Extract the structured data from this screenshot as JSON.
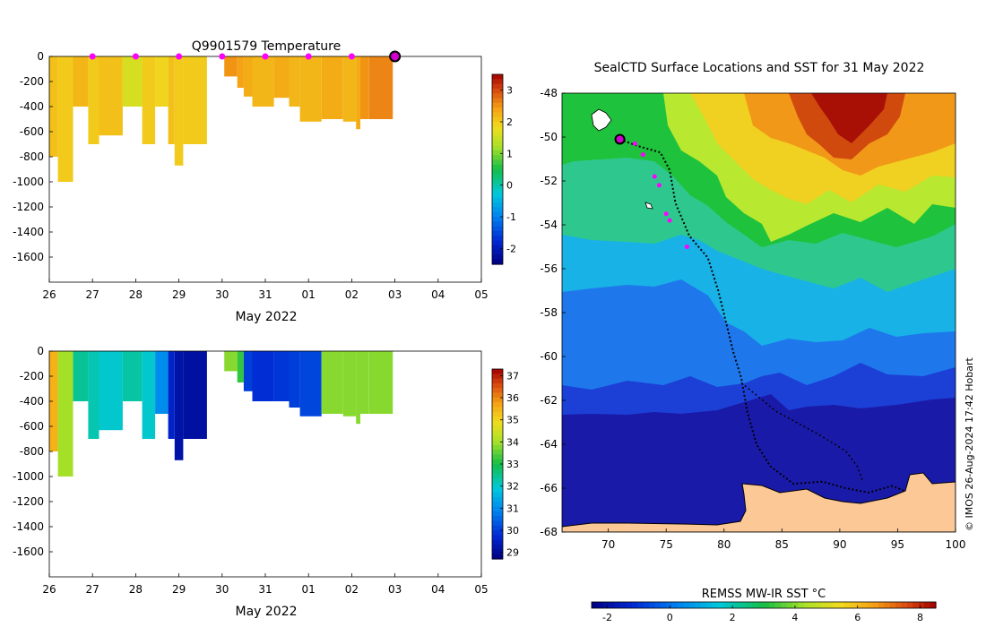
{
  "chart_data": [
    {
      "type": "heatmap",
      "title": "Q9901579  Temperature",
      "xlabel": "May 2022",
      "ylabel": "",
      "x_ticks": [
        "26",
        "27",
        "28",
        "29",
        "30",
        "31",
        "01",
        "02",
        "03",
        "04",
        "05"
      ],
      "y_ticks": [
        "0",
        "-200",
        "-400",
        "-600",
        "-800",
        "-1000",
        "-1200",
        "-1400",
        "-1600"
      ],
      "ylim": [
        -1800,
        0
      ],
      "xlim": [
        26,
        36
      ],
      "colorbar_ticks": [
        "3",
        "2",
        "1",
        "0",
        "-1",
        "-2"
      ],
      "colorbar_range": [
        -2.5,
        3.5
      ],
      "profiles": [
        {
          "x": 26.0,
          "w": 0.2,
          "depth": 800,
          "value": 2.1
        },
        {
          "x": 26.2,
          "w": 0.35,
          "depth": 1000,
          "value": 2.0
        },
        {
          "x": 26.55,
          "w": 0.35,
          "depth": 400,
          "value": 2.2
        },
        {
          "x": 26.9,
          "w": 0.25,
          "depth": 700,
          "value": 2.0
        },
        {
          "x": 27.15,
          "w": 0.55,
          "depth": 630,
          "value": 2.1
        },
        {
          "x": 27.7,
          "w": 0.45,
          "depth": 400,
          "value": 1.6
        },
        {
          "x": 28.15,
          "w": 0.3,
          "depth": 700,
          "value": 2.0
        },
        {
          "x": 28.45,
          "w": 0.3,
          "depth": 400,
          "value": 1.9
        },
        {
          "x": 28.75,
          "w": 0.15,
          "depth": 700,
          "value": 2.1
        },
        {
          "x": 28.9,
          "w": 0.2,
          "depth": 870,
          "value": 2.0
        },
        {
          "x": 29.1,
          "w": 0.55,
          "depth": 700,
          "value": 2.0
        },
        {
          "x": 30.05,
          "w": 0.3,
          "depth": 160,
          "value": 2.5
        },
        {
          "x": 30.35,
          "w": 0.15,
          "depth": 250,
          "value": 2.4
        },
        {
          "x": 30.5,
          "w": 0.2,
          "depth": 320,
          "value": 2.3
        },
        {
          "x": 30.7,
          "w": 0.5,
          "depth": 400,
          "value": 2.2
        },
        {
          "x": 31.2,
          "w": 0.35,
          "depth": 330,
          "value": 2.3
        },
        {
          "x": 31.55,
          "w": 0.25,
          "depth": 400,
          "value": 2.2
        },
        {
          "x": 31.8,
          "w": 0.5,
          "depth": 520,
          "value": 2.2
        },
        {
          "x": 32.3,
          "w": 0.5,
          "depth": 500,
          "value": 2.3
        },
        {
          "x": 32.8,
          "w": 0.3,
          "depth": 520,
          "value": 2.2
        },
        {
          "x": 33.1,
          "w": 0.1,
          "depth": 580,
          "value": 2.3
        },
        {
          "x": 33.2,
          "w": 0.2,
          "depth": 500,
          "value": 2.5
        },
        {
          "x": 33.4,
          "w": 0.55,
          "depth": 500,
          "value": 2.6
        }
      ],
      "markers": [
        27.0,
        28.0,
        29.0,
        30.0,
        31.0,
        32.0,
        33.0
      ],
      "current_marker": 34.0
    },
    {
      "type": "heatmap",
      "title": "",
      "xlabel": "May 2022",
      "x_ticks": [
        "26",
        "27",
        "28",
        "29",
        "30",
        "31",
        "01",
        "02",
        "03",
        "04",
        "05"
      ],
      "y_ticks": [
        "0",
        "-200",
        "-400",
        "-600",
        "-800",
        "-1000",
        "-1200",
        "-1400",
        "-1600"
      ],
      "ylim": [
        -1800,
        0
      ],
      "xlim": [
        26,
        36
      ],
      "colorbar_ticks": [
        "37",
        "36",
        "35",
        "34",
        "33",
        "32",
        "31",
        "30",
        "29"
      ],
      "colorbar_range": [
        28.7,
        37.3
      ],
      "profiles": [
        {
          "x": 26.0,
          "w": 0.2,
          "depth": 800,
          "value": 35.5
        },
        {
          "x": 26.2,
          "w": 0.35,
          "depth": 1000,
          "value": 34.0
        },
        {
          "x": 26.55,
          "w": 0.35,
          "depth": 400,
          "value": 32.4
        },
        {
          "x": 26.9,
          "w": 0.25,
          "depth": 700,
          "value": 32.2
        },
        {
          "x": 27.15,
          "w": 0.55,
          "depth": 630,
          "value": 32.0
        },
        {
          "x": 27.7,
          "w": 0.45,
          "depth": 400,
          "value": 32.3
        },
        {
          "x": 28.15,
          "w": 0.3,
          "depth": 700,
          "value": 32.0
        },
        {
          "x": 28.45,
          "w": 0.3,
          "depth": 500,
          "value": 31.0
        },
        {
          "x": 28.75,
          "w": 0.15,
          "depth": 700,
          "value": 29.6
        },
        {
          "x": 28.9,
          "w": 0.2,
          "depth": 870,
          "value": 29.2
        },
        {
          "x": 29.1,
          "w": 0.55,
          "depth": 700,
          "value": 29.1
        },
        {
          "x": 30.05,
          "w": 0.3,
          "depth": 160,
          "value": 33.8
        },
        {
          "x": 30.35,
          "w": 0.15,
          "depth": 250,
          "value": 33.2
        },
        {
          "x": 30.5,
          "w": 0.2,
          "depth": 320,
          "value": 30.0
        },
        {
          "x": 30.7,
          "w": 0.5,
          "depth": 400,
          "value": 29.8
        },
        {
          "x": 31.2,
          "w": 0.35,
          "depth": 400,
          "value": 29.9
        },
        {
          "x": 31.55,
          "w": 0.25,
          "depth": 450,
          "value": 30.0
        },
        {
          "x": 31.8,
          "w": 0.5,
          "depth": 520,
          "value": 30.1
        },
        {
          "x": 32.3,
          "w": 0.5,
          "depth": 500,
          "value": 33.8
        },
        {
          "x": 32.8,
          "w": 0.3,
          "depth": 520,
          "value": 33.8
        },
        {
          "x": 33.1,
          "w": 0.1,
          "depth": 580,
          "value": 33.8
        },
        {
          "x": 33.2,
          "w": 0.2,
          "depth": 500,
          "value": 33.8
        },
        {
          "x": 33.4,
          "w": 0.55,
          "depth": 500,
          "value": 33.8
        }
      ]
    },
    {
      "type": "heatmap",
      "title": "SealCTD Surface Locations and SST for 31 May 2022",
      "xlabel": "",
      "x_ticks": [
        "70",
        "75",
        "80",
        "85",
        "90",
        "95",
        "100"
      ],
      "y_ticks": [
        "-48",
        "-50",
        "-52",
        "-54",
        "-56",
        "-58",
        "-60",
        "-62",
        "-64",
        "-66",
        "-68"
      ],
      "xlim": [
        66,
        100
      ],
      "ylim": [
        -68,
        -48
      ],
      "colorbar_label": "REMSS MW-IR SST °C",
      "colorbar_ticks": [
        "-2",
        "0",
        "2",
        "4",
        "6",
        "8"
      ],
      "colorbar_range": [
        -2.5,
        8.5
      ],
      "track": [
        [
          71.0,
          -50.1
        ],
        [
          72.5,
          -50.4
        ],
        [
          74.5,
          -50.7
        ],
        [
          75.3,
          -51.5
        ],
        [
          75.8,
          -53.0
        ],
        [
          77.0,
          -54.5
        ],
        [
          78.6,
          -55.5
        ],
        [
          79.5,
          -57.0
        ],
        [
          80.2,
          -58.5
        ],
        [
          80.8,
          -59.8
        ],
        [
          81.5,
          -61.0
        ],
        [
          82.0,
          -62.5
        ],
        [
          82.8,
          -64.0
        ],
        [
          84.0,
          -65.0
        ],
        [
          86.0,
          -65.8
        ],
        [
          88.5,
          -65.7
        ],
        [
          90.5,
          -66.0
        ],
        [
          92.5,
          -66.2
        ],
        [
          94.5,
          -65.9
        ],
        [
          95.5,
          -66.1
        ]
      ],
      "track_b": [
        [
          81.5,
          -61.2
        ],
        [
          84.5,
          -62.5
        ],
        [
          88.0,
          -63.5
        ],
        [
          90.5,
          -64.3
        ],
        [
          91.5,
          -65.0
        ],
        [
          92.0,
          -65.7
        ]
      ],
      "profile_points": [
        [
          72.3,
          -50.3
        ],
        [
          73.0,
          -50.8
        ],
        [
          74.0,
          -51.8
        ],
        [
          74.4,
          -52.2
        ],
        [
          75.0,
          -53.5
        ],
        [
          75.3,
          -53.8
        ],
        [
          76.8,
          -55.0
        ]
      ],
      "current_point": [
        71.0,
        -50.1
      ]
    }
  ],
  "watermark": "© IMOS 26-Aug-2024 17:42 Hobart"
}
